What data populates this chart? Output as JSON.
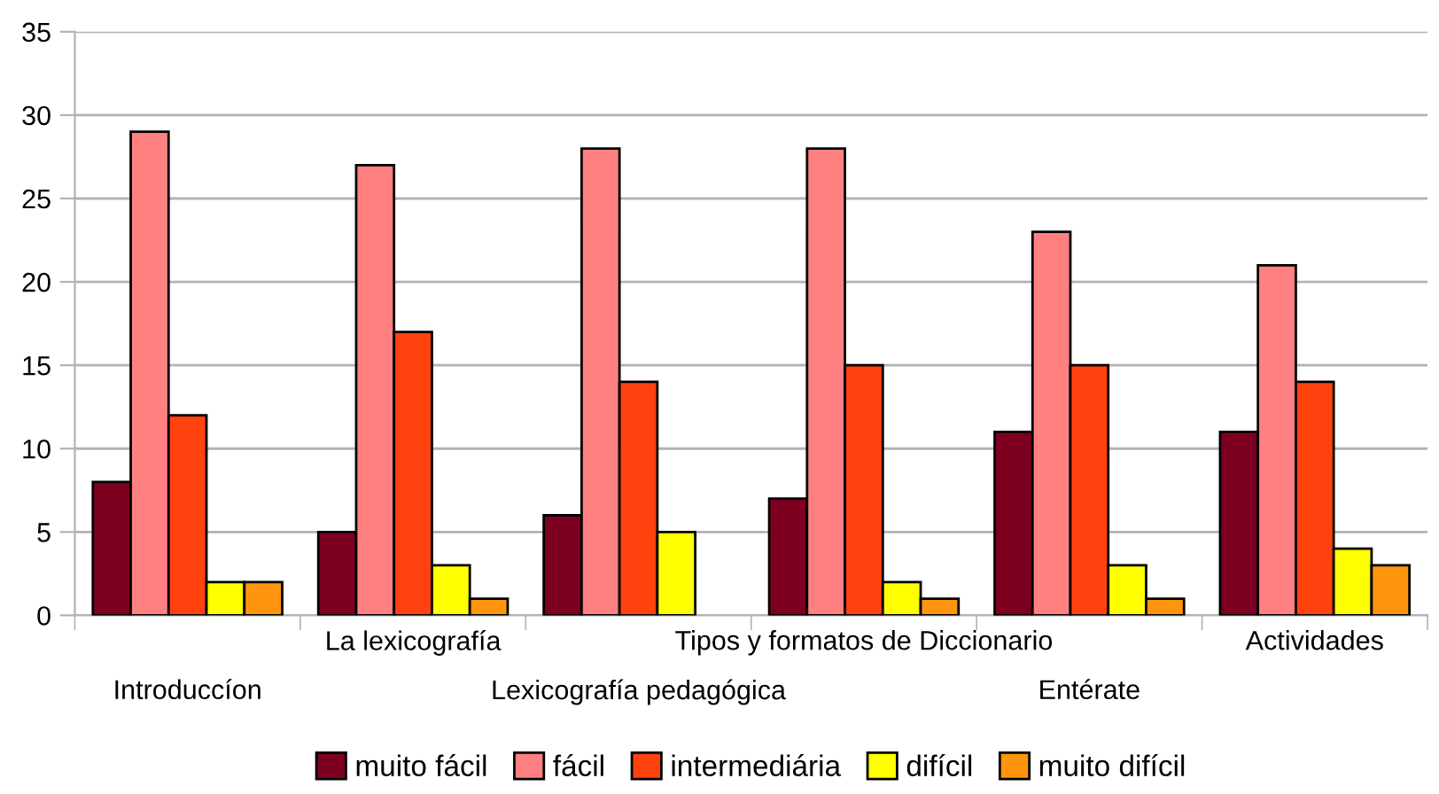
{
  "chart_data": {
    "type": "bar",
    "categories": [
      "Introduccíon",
      "La lexicografía",
      "Lexicografía pedagógica",
      "Tipos y formatos de Diccionario",
      "Entérate",
      "Actividades"
    ],
    "series": [
      {
        "name": "muito fácil",
        "color": "#7e0021",
        "values": [
          8,
          5,
          6,
          7,
          11,
          11
        ]
      },
      {
        "name": "fácil",
        "color": "#ff8080",
        "values": [
          29,
          27,
          28,
          28,
          23,
          21
        ]
      },
      {
        "name": "intermediária",
        "color": "#ff420e",
        "values": [
          12,
          17,
          14,
          15,
          15,
          14
        ]
      },
      {
        "name": "difícil",
        "color": "#ffff00",
        "values": [
          2,
          3,
          5,
          2,
          3,
          4
        ]
      },
      {
        "name": "muito difícil",
        "color": "#ff950e",
        "values": [
          2,
          1,
          null,
          1,
          1,
          3
        ]
      }
    ],
    "ylim": [
      0,
      35
    ],
    "yticks": [
      0,
      5,
      10,
      15,
      20,
      25,
      30,
      35
    ],
    "grid": "y",
    "legend": "bottom"
  }
}
